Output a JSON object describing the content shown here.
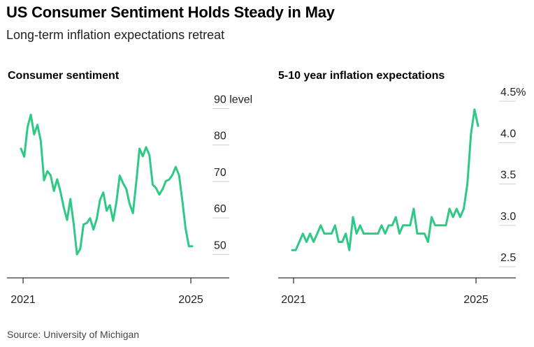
{
  "title": "US Consumer Sentiment Holds Steady in May",
  "subtitle": "Long-term inflation expectations retreat",
  "source": "Source: University of Michigan",
  "accent_color": "#2ec985",
  "chart_data": [
    {
      "type": "line",
      "title": "Consumer sentiment",
      "unit_label": "level",
      "x_ticks": [
        "2021",
        "2025"
      ],
      "xlim": [
        "2021-01",
        "2025-05"
      ],
      "yticks": [
        50,
        60,
        70,
        80,
        90
      ],
      "ylim": [
        47,
        92
      ],
      "grid": true,
      "series": [
        {
          "x": [
            "2021-01",
            "2021-02",
            "2021-03",
            "2021-04",
            "2021-05",
            "2021-06",
            "2021-07",
            "2021-08",
            "2021-09",
            "2021-10",
            "2021-11",
            "2021-12",
            "2022-01",
            "2022-02",
            "2022-03",
            "2022-04",
            "2022-05",
            "2022-06",
            "2022-07",
            "2022-08",
            "2022-09",
            "2022-10",
            "2022-11",
            "2022-12",
            "2023-01",
            "2023-02",
            "2023-03",
            "2023-04",
            "2023-05",
            "2023-06",
            "2023-07",
            "2023-08",
            "2023-09",
            "2023-10",
            "2023-11",
            "2023-12",
            "2024-01",
            "2024-02",
            "2024-03",
            "2024-04",
            "2024-05",
            "2024-06",
            "2024-07",
            "2024-08",
            "2024-09",
            "2024-10",
            "2024-11",
            "2024-12",
            "2025-01",
            "2025-02",
            "2025-03",
            "2025-04",
            "2025-05"
          ],
          "values": [
            79.0,
            76.8,
            84.9,
            88.3,
            82.9,
            85.5,
            81.2,
            70.3,
            72.8,
            71.7,
            67.4,
            70.6,
            67.2,
            62.8,
            59.4,
            65.2,
            58.4,
            50.0,
            51.5,
            58.2,
            58.6,
            59.9,
            56.8,
            59.7,
            64.9,
            67.0,
            62.0,
            63.5,
            59.2,
            64.4,
            71.6,
            69.5,
            67.9,
            63.8,
            61.3,
            69.7,
            79.0,
            76.9,
            79.4,
            77.2,
            69.1,
            68.2,
            66.4,
            67.9,
            70.1,
            70.5,
            71.8,
            74.0,
            71.7,
            64.7,
            57.0,
            52.2,
            52.2
          ]
        }
      ]
    },
    {
      "type": "line",
      "title": "5-10 year inflation expectations",
      "x_ticks": [
        "2021",
        "2025"
      ],
      "xlim": [
        "2021-01",
        "2025-05"
      ],
      "yticks": [
        "2.5",
        "3.0",
        "3.5",
        "4.0",
        "4.5%"
      ],
      "ylim": [
        2.5,
        4.5
      ],
      "grid": true,
      "series": [
        {
          "x": [
            "2021-01",
            "2021-02",
            "2021-03",
            "2021-04",
            "2021-05",
            "2021-06",
            "2021-07",
            "2021-08",
            "2021-09",
            "2021-10",
            "2021-11",
            "2021-12",
            "2022-01",
            "2022-02",
            "2022-03",
            "2022-04",
            "2022-05",
            "2022-06",
            "2022-07",
            "2022-08",
            "2022-09",
            "2022-10",
            "2022-11",
            "2022-12",
            "2023-01",
            "2023-02",
            "2023-03",
            "2023-04",
            "2023-05",
            "2023-06",
            "2023-07",
            "2023-08",
            "2023-09",
            "2023-10",
            "2023-11",
            "2023-12",
            "2024-01",
            "2024-02",
            "2024-03",
            "2024-04",
            "2024-05",
            "2024-06",
            "2024-07",
            "2024-08",
            "2024-09",
            "2024-10",
            "2024-11",
            "2024-12",
            "2025-01",
            "2025-02",
            "2025-03",
            "2025-04",
            "2025-05"
          ],
          "values": [
            2.7,
            2.7,
            2.8,
            2.9,
            2.8,
            2.9,
            2.8,
            2.9,
            3.0,
            2.9,
            2.9,
            2.9,
            3.0,
            2.8,
            2.8,
            2.9,
            2.7,
            3.1,
            2.9,
            3.0,
            2.9,
            2.9,
            2.9,
            2.9,
            2.9,
            3.0,
            2.9,
            3.0,
            3.0,
            3.1,
            2.9,
            3.0,
            3.0,
            3.0,
            3.2,
            2.9,
            2.9,
            2.9,
            2.8,
            3.1,
            3.0,
            3.0,
            3.0,
            3.0,
            3.2,
            3.1,
            3.2,
            3.1,
            3.2,
            3.5,
            4.1,
            4.4,
            4.2
          ]
        }
      ]
    }
  ]
}
